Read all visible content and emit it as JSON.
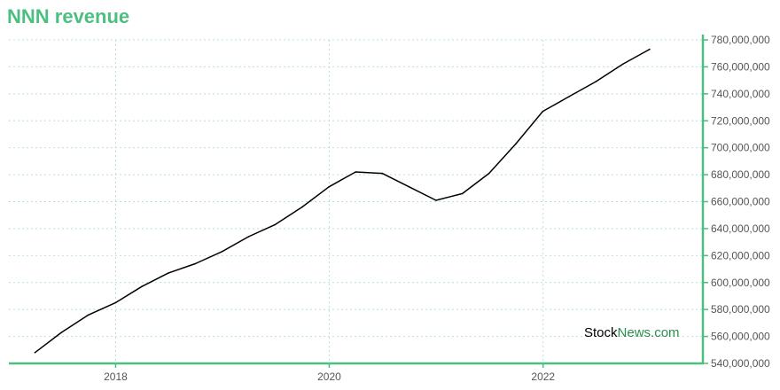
{
  "colors": {
    "accent": "#4cbf80",
    "line": "#000000",
    "grid": "#b9e4cc",
    "watermark_green": "#2a8f4d"
  },
  "title": "NNN revenue",
  "watermark": {
    "part1": "Stock",
    "part2": "News",
    "part3": ".com"
  },
  "chart_data": {
    "type": "line",
    "title": "NNN revenue",
    "xlabel": "",
    "ylabel": "",
    "x_ticks": [
      "2018",
      "2020",
      "2022"
    ],
    "y_ticks": [
      "540,000,000",
      "560,000,000",
      "580,000,000",
      "600,000,000",
      "620,000,000",
      "640,000,000",
      "660,000,000",
      "680,000,000",
      "700,000,000",
      "720,000,000",
      "740,000,000",
      "760,000,000",
      "780,000,000"
    ],
    "ylim": [
      540000000,
      780000000
    ],
    "xlim": [
      "2017-01-01",
      "2023-07-01"
    ],
    "grid": true,
    "y_axis_side": "right",
    "series": [
      {
        "x": [
          "2017-03-31",
          "2017-06-30",
          "2017-09-30",
          "2017-12-31",
          "2018-03-31",
          "2018-06-30",
          "2018-09-30",
          "2018-12-31",
          "2019-03-31",
          "2019-06-30",
          "2019-09-30",
          "2019-12-31",
          "2020-03-31",
          "2020-06-30",
          "2020-09-30",
          "2020-12-31",
          "2021-03-31",
          "2021-06-30",
          "2021-09-30",
          "2021-12-31",
          "2022-03-31",
          "2022-06-30",
          "2022-09-30",
          "2022-12-31"
        ],
        "values": [
          548000000,
          563000000,
          576000000,
          585000000,
          597000000,
          607000000,
          614000000,
          623000000,
          634000000,
          643000000,
          656000000,
          671000000,
          682000000,
          681000000,
          671000000,
          661000000,
          666000000,
          681000000,
          703000000,
          727000000,
          738000000,
          749000000,
          762000000,
          773000000
        ]
      }
    ]
  }
}
